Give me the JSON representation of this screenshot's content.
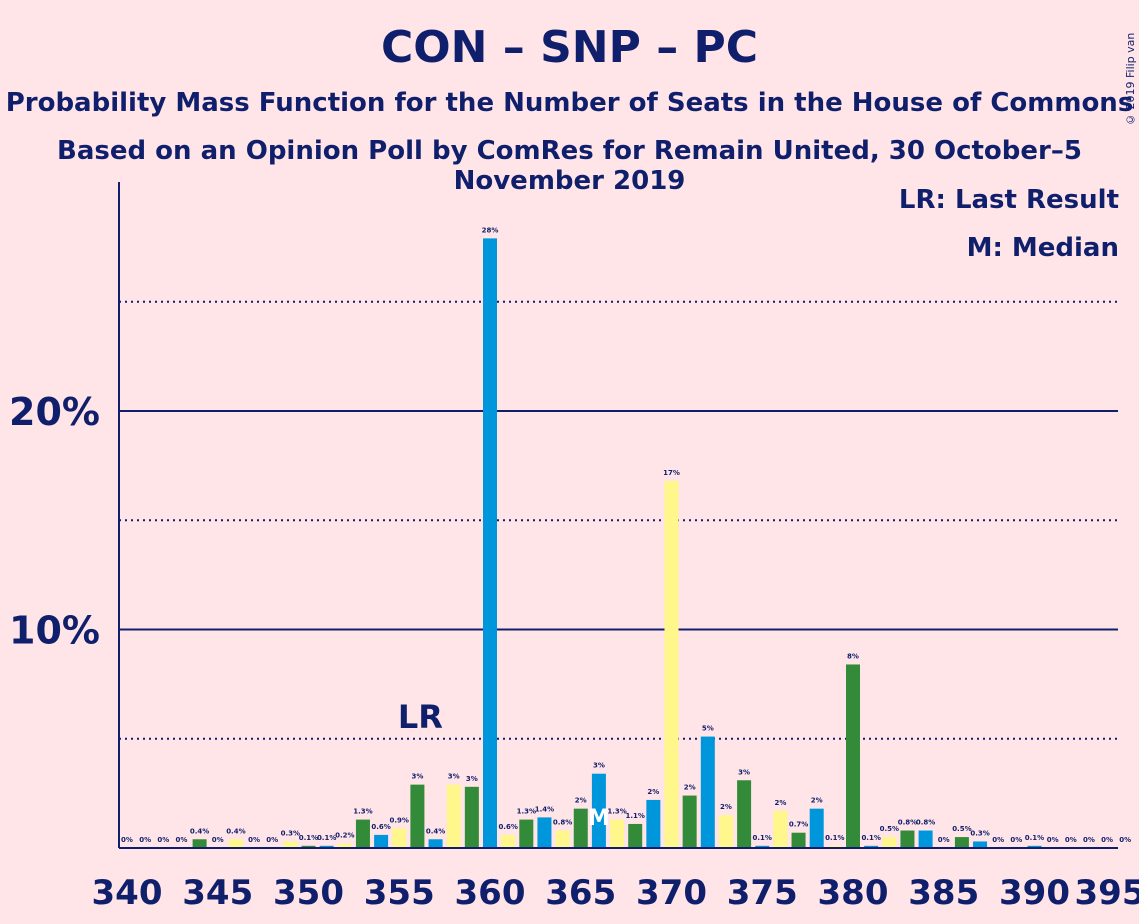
{
  "header": {
    "title": "CON – SNP – PC",
    "subtitle1": "Probability Mass Function for the Number of Seats in the House of Commons",
    "subtitle2": "Based on an Opinion Poll by ComRes for Remain United, 30 October–5 November 2019",
    "copyright": "© 2019 Filip van Laenen"
  },
  "legend": {
    "last_result": "LR: Last Result",
    "median": "M: Median"
  },
  "colors": {
    "background": "#FFE4E8",
    "text": "#0F1F6B",
    "blue": "#0096DB",
    "green": "#338A38",
    "yellow": "#FFF68C"
  },
  "chart_data": {
    "type": "bar",
    "xlim": [
      340,
      395
    ],
    "ylim": [
      0,
      30
    ],
    "x_ticks": [
      340,
      345,
      350,
      355,
      360,
      365,
      370,
      375,
      380,
      385,
      390,
      395
    ],
    "y_ticks_labeled": [
      {
        "value": 10,
        "label": "10%"
      },
      {
        "value": 20,
        "label": "20%"
      }
    ],
    "gridlines_solid": [
      10,
      20
    ],
    "gridlines_dotted": [
      5,
      15,
      25
    ],
    "last_result": {
      "seat": 356,
      "label": "LR"
    },
    "median": {
      "seat": 366,
      "label": "M"
    },
    "bars": [
      {
        "x": 340,
        "value": 0,
        "label": "0%",
        "color": "blue"
      },
      {
        "x": 341,
        "value": 0,
        "label": "0%",
        "color": "yellow"
      },
      {
        "x": 342,
        "value": 0,
        "label": "0%",
        "color": "blue"
      },
      {
        "x": 343,
        "value": 0,
        "label": "0%",
        "color": "yellow"
      },
      {
        "x": 344,
        "value": 0.4,
        "label": "0.4%",
        "color": "green"
      },
      {
        "x": 345,
        "value": 0,
        "label": "0%",
        "color": "blue"
      },
      {
        "x": 346,
        "value": 0.4,
        "label": "0.4%",
        "color": "yellow"
      },
      {
        "x": 347,
        "value": 0,
        "label": "0%",
        "color": "green"
      },
      {
        "x": 348,
        "value": 0,
        "label": "0%",
        "color": "blue"
      },
      {
        "x": 349,
        "value": 0.3,
        "label": "0.3%",
        "color": "yellow"
      },
      {
        "x": 350,
        "value": 0.1,
        "label": "0.1%",
        "color": "green"
      },
      {
        "x": 351,
        "value": 0.1,
        "label": "0.1%",
        "color": "blue"
      },
      {
        "x": 352,
        "value": 0.2,
        "label": "0.2%",
        "color": "yellow"
      },
      {
        "x": 353,
        "value": 1.3,
        "label": "1.3%",
        "color": "green"
      },
      {
        "x": 354,
        "value": 0.6,
        "label": "0.6%",
        "color": "blue"
      },
      {
        "x": 355,
        "value": 0.9,
        "label": "0.9%",
        "color": "yellow"
      },
      {
        "x": 356,
        "value": 2.9,
        "label": "3%",
        "color": "green"
      },
      {
        "x": 357,
        "value": 0.4,
        "label": "0.4%",
        "color": "blue"
      },
      {
        "x": 358,
        "value": 2.9,
        "label": "3%",
        "color": "yellow"
      },
      {
        "x": 359,
        "value": 2.8,
        "label": "3%",
        "color": "green"
      },
      {
        "x": 360,
        "value": 27.9,
        "label": "28%",
        "color": "blue"
      },
      {
        "x": 361,
        "value": 0.6,
        "label": "0.6%",
        "color": "yellow"
      },
      {
        "x": 362,
        "value": 1.3,
        "label": "1.3%",
        "color": "green"
      },
      {
        "x": 363,
        "value": 1.4,
        "label": "1.4%",
        "color": "blue"
      },
      {
        "x": 364,
        "value": 0.8,
        "label": "0.8%",
        "color": "yellow"
      },
      {
        "x": 365,
        "value": 1.8,
        "label": "2%",
        "color": "green"
      },
      {
        "x": 366,
        "value": 3.4,
        "label": "3%",
        "color": "blue"
      },
      {
        "x": 367,
        "value": 1.3,
        "label": "1.3%",
        "color": "yellow"
      },
      {
        "x": 368,
        "value": 1.1,
        "label": "1.1%",
        "color": "green"
      },
      {
        "x": 369,
        "value": 2.2,
        "label": "2%",
        "color": "blue"
      },
      {
        "x": 370,
        "value": 16.8,
        "label": "17%",
        "color": "yellow"
      },
      {
        "x": 371,
        "value": 2.4,
        "label": "2%",
        "color": "green"
      },
      {
        "x": 372,
        "value": 5.1,
        "label": "5%",
        "color": "blue"
      },
      {
        "x": 373,
        "value": 1.5,
        "label": "2%",
        "color": "yellow"
      },
      {
        "x": 374,
        "value": 3.1,
        "label": "3%",
        "color": "green"
      },
      {
        "x": 375,
        "value": 0.1,
        "label": "0.1%",
        "color": "blue"
      },
      {
        "x": 376,
        "value": 1.7,
        "label": "2%",
        "color": "yellow"
      },
      {
        "x": 377,
        "value": 0.7,
        "label": "0.7%",
        "color": "green"
      },
      {
        "x": 378,
        "value": 1.8,
        "label": "2%",
        "color": "blue"
      },
      {
        "x": 379,
        "value": 0.1,
        "label": "0.1%",
        "color": "yellow"
      },
      {
        "x": 380,
        "value": 8.4,
        "label": "8%",
        "color": "green"
      },
      {
        "x": 381,
        "value": 0.1,
        "label": "0.1%",
        "color": "blue"
      },
      {
        "x": 382,
        "value": 0.5,
        "label": "0.5%",
        "color": "yellow"
      },
      {
        "x": 383,
        "value": 0.8,
        "label": "0.8%",
        "color": "green"
      },
      {
        "x": 384,
        "value": 0.8,
        "label": "0.8%",
        "color": "blue"
      },
      {
        "x": 385,
        "value": 0,
        "label": "0%",
        "color": "yellow"
      },
      {
        "x": 386,
        "value": 0.5,
        "label": "0.5%",
        "color": "green"
      },
      {
        "x": 387,
        "value": 0.3,
        "label": "0.3%",
        "color": "blue"
      },
      {
        "x": 388,
        "value": 0,
        "label": "0%",
        "color": "yellow"
      },
      {
        "x": 389,
        "value": 0,
        "label": "0%",
        "color": "green"
      },
      {
        "x": 390,
        "value": 0.1,
        "label": "0.1%",
        "color": "blue"
      },
      {
        "x": 391,
        "value": 0,
        "label": "0%",
        "color": "yellow"
      },
      {
        "x": 392,
        "value": 0,
        "label": "0%",
        "color": "green"
      },
      {
        "x": 393,
        "value": 0,
        "label": "0%",
        "color": "blue"
      },
      {
        "x": 394,
        "value": 0,
        "label": "0%",
        "color": "yellow"
      },
      {
        "x": 395,
        "value": 0,
        "label": "0%",
        "color": "green"
      }
    ]
  }
}
